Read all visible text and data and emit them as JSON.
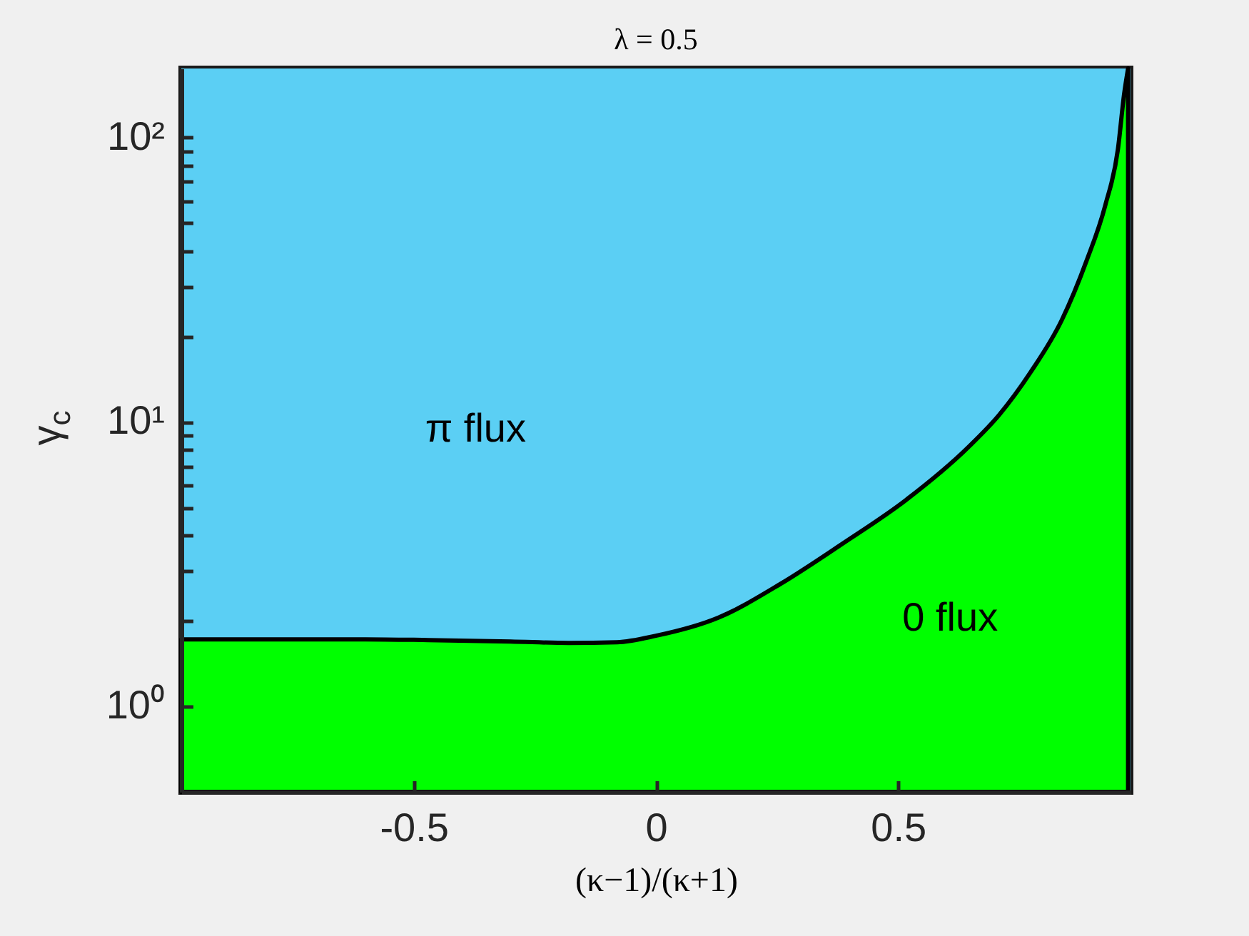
{
  "chart_data": {
    "type": "area",
    "title": "λ = 0.5",
    "xlabel": "(κ−1)/(κ+1)",
    "ylabel": "γ$_{c}$",
    "series": [
      {
        "name": "0 flux",
        "color": "#00ff00",
        "x": [
          -0.98,
          -0.8,
          -0.6,
          -0.47,
          -0.3,
          -0.18,
          -0.08,
          0,
          0.129,
          0.258,
          0.386,
          0.516,
          0.645,
          0.709,
          0.773,
          0.838,
          0.889,
          0.928,
          0.954,
          0.967,
          0.975
        ],
        "values": [
          1.72,
          1.72,
          1.72,
          1.71,
          1.69,
          1.67,
          1.68,
          1.77,
          2.05,
          2.7,
          3.74,
          5.31,
          8.15,
          10.6,
          14.9,
          22.8,
          36.8,
          57.9,
          91,
          143,
          175
        ]
      }
    ],
    "bands": [
      {
        "axis": "y",
        "from": 0.5,
        "to": 175,
        "color": "#5bcff4",
        "label": "π flux"
      }
    ],
    "xlim": [
      -0.98,
      0.98
    ],
    "ylim": [
      0.5,
      175
    ],
    "xticks": [
      -0.5,
      0,
      0.5
    ],
    "yticks": [
      {
        "value": 1,
        "label": "10⁰"
      },
      {
        "value": 2,
        "label": null
      },
      {
        "value": 3,
        "label": null
      },
      {
        "value": 4,
        "label": null
      },
      {
        "value": 5,
        "label": null
      },
      {
        "value": 6,
        "label": null
      },
      {
        "value": 7,
        "label": null
      },
      {
        "value": 8,
        "label": null
      },
      {
        "value": 9,
        "label": null
      },
      {
        "value": 10,
        "label": "10¹"
      },
      {
        "value": 20,
        "label": null
      },
      {
        "value": 30,
        "label": null
      },
      {
        "value": 40,
        "label": null
      },
      {
        "value": 50,
        "label": null
      },
      {
        "value": 60,
        "label": null
      },
      {
        "value": 70,
        "label": null
      },
      {
        "value": 80,
        "label": null
      },
      {
        "value": 90,
        "label": null
      },
      {
        "value": 100,
        "label": "10²"
      }
    ],
    "log": "y"
  }
}
